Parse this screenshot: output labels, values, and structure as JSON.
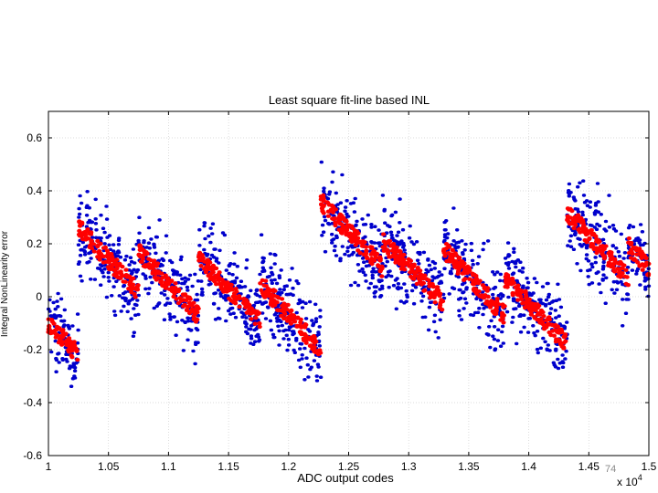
{
  "page_number": "74",
  "chart_data": {
    "type": "scatter",
    "title": "Least square fit-line based INL",
    "xlabel": "ADC output codes",
    "ylabel": "Integral NonLinearity error",
    "x_multiplier": "x 10",
    "x_multiplier_exp": "4",
    "xlim": [
      1.0,
      1.5
    ],
    "ylim": [
      -0.6,
      0.7
    ],
    "grid": true,
    "xticks": [
      "1",
      "1.05",
      "1.1",
      "1.15",
      "1.2",
      "1.25",
      "1.3",
      "1.35",
      "1.4",
      "1.45",
      "1.5"
    ],
    "yticks": [
      "-0.6",
      "-0.4",
      "-0.2",
      "0",
      "0.2",
      "0.4",
      "0.6"
    ],
    "xtick_values": [
      1.0,
      1.05,
      1.1,
      1.15,
      1.2,
      1.25,
      1.3,
      1.35,
      1.4,
      1.45,
      1.5
    ],
    "ytick_values": [
      -0.6,
      -0.4,
      -0.2,
      0,
      0.2,
      0.4,
      0.6
    ],
    "series": [
      {
        "color": "#0000cc",
        "style": "scattered points",
        "segments": [
          {
            "x": [
              1.0,
              1.025
            ],
            "y": [
              -0.1,
              -0.22
            ],
            "spread": 0.12
          },
          {
            "x": [
              1.025,
              1.075
            ],
            "y": [
              0.26,
              0.02
            ],
            "spread": 0.15
          },
          {
            "x": [
              1.075,
              1.125
            ],
            "y": [
              0.17,
              -0.07
            ],
            "spread": 0.14
          },
          {
            "x": [
              1.125,
              1.176
            ],
            "y": [
              0.14,
              -0.09
            ],
            "spread": 0.14
          },
          {
            "x": [
              1.176,
              1.227
            ],
            "y": [
              0.05,
              -0.2
            ],
            "spread": 0.14
          },
          {
            "x": [
              1.227,
              1.278
            ],
            "y": [
              0.36,
              0.11
            ],
            "spread": 0.15
          },
          {
            "x": [
              1.278,
              1.329
            ],
            "y": [
              0.21,
              -0.02
            ],
            "spread": 0.14
          },
          {
            "x": [
              1.329,
              1.38
            ],
            "y": [
              0.18,
              -0.07
            ],
            "spread": 0.14
          },
          {
            "x": [
              1.38,
              1.432
            ],
            "y": [
              0.07,
              -0.18
            ],
            "spread": 0.14
          },
          {
            "x": [
              1.432,
              1.483
            ],
            "y": [
              0.32,
              0.07
            ],
            "spread": 0.15
          },
          {
            "x": [
              1.483,
              1.5
            ],
            "y": [
              0.19,
              0.11
            ],
            "spread": 0.12
          }
        ]
      },
      {
        "color": "#ff0000",
        "style": "dense fit band",
        "segments": [
          {
            "x": [
              1.0,
              1.025
            ],
            "y": [
              -0.1,
              -0.22
            ]
          },
          {
            "x": [
              1.025,
              1.075
            ],
            "y": [
              0.26,
              0.02
            ]
          },
          {
            "x": [
              1.075,
              1.125
            ],
            "y": [
              0.17,
              -0.07
            ]
          },
          {
            "x": [
              1.125,
              1.176
            ],
            "y": [
              0.14,
              -0.09
            ]
          },
          {
            "x": [
              1.176,
              1.227
            ],
            "y": [
              0.05,
              -0.2
            ]
          },
          {
            "x": [
              1.227,
              1.278
            ],
            "y": [
              0.36,
              0.11
            ]
          },
          {
            "x": [
              1.278,
              1.329
            ],
            "y": [
              0.21,
              -0.02
            ]
          },
          {
            "x": [
              1.329,
              1.38
            ],
            "y": [
              0.18,
              -0.07
            ]
          },
          {
            "x": [
              1.38,
              1.432
            ],
            "y": [
              0.07,
              -0.18
            ]
          },
          {
            "x": [
              1.432,
              1.483
            ],
            "y": [
              0.32,
              0.07
            ]
          },
          {
            "x": [
              1.483,
              1.5
            ],
            "y": [
              0.19,
              0.11
            ]
          }
        ]
      }
    ]
  }
}
